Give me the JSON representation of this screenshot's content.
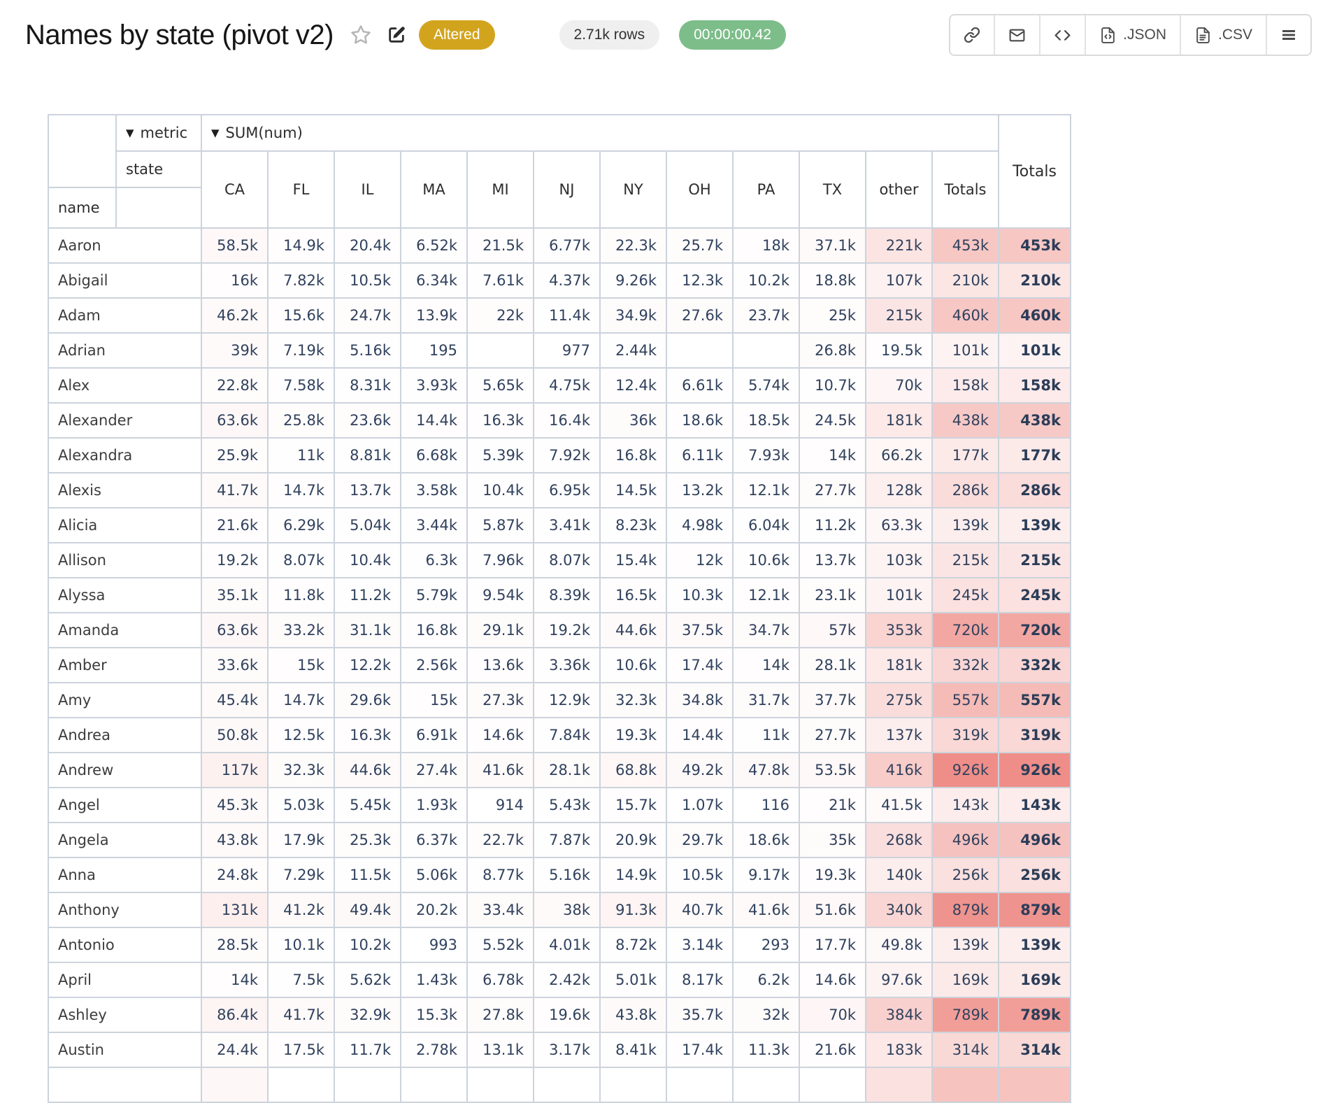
{
  "header": {
    "title": "Names by state (pivot v2)",
    "altered_badge": "Altered",
    "rows_badge": "2.71k rows",
    "timer_badge": "00:00:00.42",
    "json_button": ".JSON",
    "csv_button": ".CSV",
    "colors": {
      "altered_bg": "#d2a41e",
      "rows_bg": "#efefef",
      "timer_bg": "#7dbd8a"
    }
  },
  "pivot": {
    "metric_label": "metric",
    "metric_value": "SUM(num)",
    "state_label": "state",
    "name_label": "name",
    "row_total_label": "Totals",
    "columns": [
      "CA",
      "FL",
      "IL",
      "MA",
      "MI",
      "NJ",
      "NY",
      "OH",
      "PA",
      "TX",
      "other",
      "Totals"
    ],
    "heat": {
      "rgb": "233,104,96",
      "max_alpha": 0.75,
      "max_value": 926000
    },
    "rows": [
      {
        "name": "Aaron",
        "values": [
          "58.5k",
          "14.9k",
          "20.4k",
          "6.52k",
          "21.5k",
          "6.77k",
          "22.3k",
          "25.7k",
          "18k",
          "37.1k",
          "221k",
          "453k"
        ],
        "total": "453k"
      },
      {
        "name": "Abigail",
        "values": [
          "16k",
          "7.82k",
          "10.5k",
          "6.34k",
          "7.61k",
          "4.37k",
          "9.26k",
          "12.3k",
          "10.2k",
          "18.8k",
          "107k",
          "210k"
        ],
        "total": "210k"
      },
      {
        "name": "Adam",
        "values": [
          "46.2k",
          "15.6k",
          "24.7k",
          "13.9k",
          "22k",
          "11.4k",
          "34.9k",
          "27.6k",
          "23.7k",
          "25k",
          "215k",
          "460k"
        ],
        "total": "460k"
      },
      {
        "name": "Adrian",
        "values": [
          "39k",
          "7.19k",
          "5.16k",
          "195",
          "",
          "977",
          "2.44k",
          "",
          "",
          "26.8k",
          "19.5k",
          "101k"
        ],
        "total": "101k"
      },
      {
        "name": "Alex",
        "values": [
          "22.8k",
          "7.58k",
          "8.31k",
          "3.93k",
          "5.65k",
          "4.75k",
          "12.4k",
          "6.61k",
          "5.74k",
          "10.7k",
          "70k",
          "158k"
        ],
        "total": "158k"
      },
      {
        "name": "Alexander",
        "values": [
          "63.6k",
          "25.8k",
          "23.6k",
          "14.4k",
          "16.3k",
          "16.4k",
          "36k",
          "18.6k",
          "18.5k",
          "24.5k",
          "181k",
          "438k"
        ],
        "total": "438k"
      },
      {
        "name": "Alexandra",
        "values": [
          "25.9k",
          "11k",
          "8.81k",
          "6.68k",
          "5.39k",
          "7.92k",
          "16.8k",
          "6.11k",
          "7.93k",
          "14k",
          "66.2k",
          "177k"
        ],
        "total": "177k"
      },
      {
        "name": "Alexis",
        "values": [
          "41.7k",
          "14.7k",
          "13.7k",
          "3.58k",
          "10.4k",
          "6.95k",
          "14.5k",
          "13.2k",
          "12.1k",
          "27.7k",
          "128k",
          "286k"
        ],
        "total": "286k"
      },
      {
        "name": "Alicia",
        "values": [
          "21.6k",
          "6.29k",
          "5.04k",
          "3.44k",
          "5.87k",
          "3.41k",
          "8.23k",
          "4.98k",
          "6.04k",
          "11.2k",
          "63.3k",
          "139k"
        ],
        "total": "139k"
      },
      {
        "name": "Allison",
        "values": [
          "19.2k",
          "8.07k",
          "10.4k",
          "6.3k",
          "7.96k",
          "8.07k",
          "15.4k",
          "12k",
          "10.6k",
          "13.7k",
          "103k",
          "215k"
        ],
        "total": "215k"
      },
      {
        "name": "Alyssa",
        "values": [
          "35.1k",
          "11.8k",
          "11.2k",
          "5.79k",
          "9.54k",
          "8.39k",
          "16.5k",
          "10.3k",
          "12.1k",
          "23.1k",
          "101k",
          "245k"
        ],
        "total": "245k"
      },
      {
        "name": "Amanda",
        "values": [
          "63.6k",
          "33.2k",
          "31.1k",
          "16.8k",
          "29.1k",
          "19.2k",
          "44.6k",
          "37.5k",
          "34.7k",
          "57k",
          "353k",
          "720k"
        ],
        "total": "720k"
      },
      {
        "name": "Amber",
        "values": [
          "33.6k",
          "15k",
          "12.2k",
          "2.56k",
          "13.6k",
          "3.36k",
          "10.6k",
          "17.4k",
          "14k",
          "28.1k",
          "181k",
          "332k"
        ],
        "total": "332k"
      },
      {
        "name": "Amy",
        "values": [
          "45.4k",
          "14.7k",
          "29.6k",
          "15k",
          "27.3k",
          "12.9k",
          "32.3k",
          "34.8k",
          "31.7k",
          "37.7k",
          "275k",
          "557k"
        ],
        "total": "557k"
      },
      {
        "name": "Andrea",
        "values": [
          "50.8k",
          "12.5k",
          "16.3k",
          "6.91k",
          "14.6k",
          "7.84k",
          "19.3k",
          "14.4k",
          "11k",
          "27.7k",
          "137k",
          "319k"
        ],
        "total": "319k"
      },
      {
        "name": "Andrew",
        "values": [
          "117k",
          "32.3k",
          "44.6k",
          "27.4k",
          "41.6k",
          "28.1k",
          "68.8k",
          "49.2k",
          "47.8k",
          "53.5k",
          "416k",
          "926k"
        ],
        "total": "926k"
      },
      {
        "name": "Angel",
        "values": [
          "45.3k",
          "5.03k",
          "5.45k",
          "1.93k",
          "914",
          "5.43k",
          "15.7k",
          "1.07k",
          "116",
          "21k",
          "41.5k",
          "143k"
        ],
        "total": "143k"
      },
      {
        "name": "Angela",
        "values": [
          "43.8k",
          "17.9k",
          "25.3k",
          "6.37k",
          "22.7k",
          "7.87k",
          "20.9k",
          "29.7k",
          "18.6k",
          "35k",
          "268k",
          "496k"
        ],
        "total": "496k"
      },
      {
        "name": "Anna",
        "values": [
          "24.8k",
          "7.29k",
          "11.5k",
          "5.06k",
          "8.77k",
          "5.16k",
          "14.9k",
          "10.5k",
          "9.17k",
          "19.3k",
          "140k",
          "256k"
        ],
        "total": "256k"
      },
      {
        "name": "Anthony",
        "values": [
          "131k",
          "41.2k",
          "49.4k",
          "20.2k",
          "33.4k",
          "38k",
          "91.3k",
          "40.7k",
          "41.6k",
          "51.6k",
          "340k",
          "879k"
        ],
        "total": "879k"
      },
      {
        "name": "Antonio",
        "values": [
          "28.5k",
          "10.1k",
          "10.2k",
          "993",
          "5.52k",
          "4.01k",
          "8.72k",
          "3.14k",
          "293",
          "17.7k",
          "49.8k",
          "139k"
        ],
        "total": "139k"
      },
      {
        "name": "April",
        "values": [
          "14k",
          "7.5k",
          "5.62k",
          "1.43k",
          "6.78k",
          "2.42k",
          "5.01k",
          "8.17k",
          "6.2k",
          "14.6k",
          "97.6k",
          "169k"
        ],
        "total": "169k"
      },
      {
        "name": "Ashley",
        "values": [
          "86.4k",
          "41.7k",
          "32.9k",
          "15.3k",
          "27.8k",
          "19.6k",
          "43.8k",
          "35.7k",
          "32k",
          "70k",
          "384k",
          "789k"
        ],
        "total": "789k"
      },
      {
        "name": "Austin",
        "values": [
          "24.4k",
          "17.5k",
          "11.7k",
          "2.78k",
          "13.1k",
          "3.17k",
          "8.41k",
          "17.4k",
          "11.3k",
          "21.6k",
          "183k",
          "314k"
        ],
        "total": "314k"
      }
    ],
    "partial_next_row": {
      "visible": true,
      "cell_heats": [
        0.05,
        0,
        0,
        0,
        0,
        0,
        0,
        0,
        0,
        0,
        0.2,
        0.4,
        0.4
      ]
    }
  }
}
